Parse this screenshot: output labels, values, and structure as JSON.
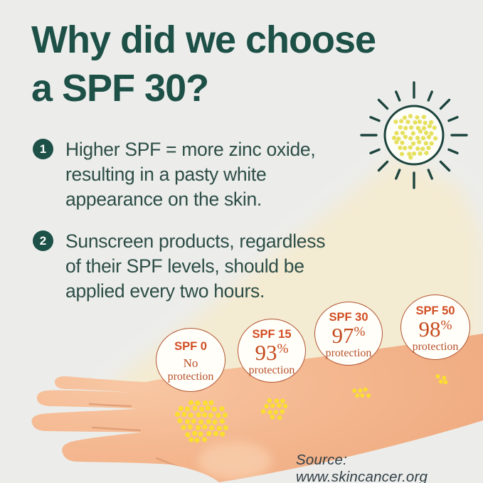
{
  "title": {
    "line1": "Why did we choose",
    "line2": "a SPF 30?"
  },
  "points": [
    {
      "number": "1",
      "lines": [
        "Higher SPF = more zinc oxide,",
        "resulting in a pasty white",
        "appearance on the skin."
      ]
    },
    {
      "number": "2",
      "lines": [
        "Sunscreen products, regardless",
        "of their SPF levels, should be",
        "applied every two hours."
      ]
    }
  ],
  "spf_levels": [
    {
      "label": "SPF 0",
      "value": "No",
      "caption": "protection"
    },
    {
      "label": "SPF 15",
      "value": "93%",
      "caption": "protection"
    },
    {
      "label": "SPF 30",
      "value": "97%",
      "caption": "protection"
    },
    {
      "label": "SPF 50",
      "value": "98%",
      "caption": "protection"
    }
  ],
  "source": "Source: www.skincancer.org",
  "illustration": {
    "sun": "sun-filled-with-zinc-oxide-dots",
    "arm": "forearm-and-hand-with-sunscreen-dot-clusters",
    "arm_dot_clusters": [
      42,
      13,
      6,
      4
    ]
  },
  "colors": {
    "background": "#ecedeb",
    "heading_teal": "#1d5047",
    "body_text": "#2d4d46",
    "sun_outline": "#1c443d",
    "sun_fill": "#fdfdf8",
    "sun_dot": "#e6e05f",
    "beam": "#f4ebd1",
    "arm_skin": "#f3b68e",
    "arm_crease": "#dd9b72",
    "arm_dot": "#fade32",
    "circle_border": "#b2532e",
    "circle_label": "#d14d22",
    "circle_value": "#c54b1e",
    "source_text": "#313e45"
  }
}
